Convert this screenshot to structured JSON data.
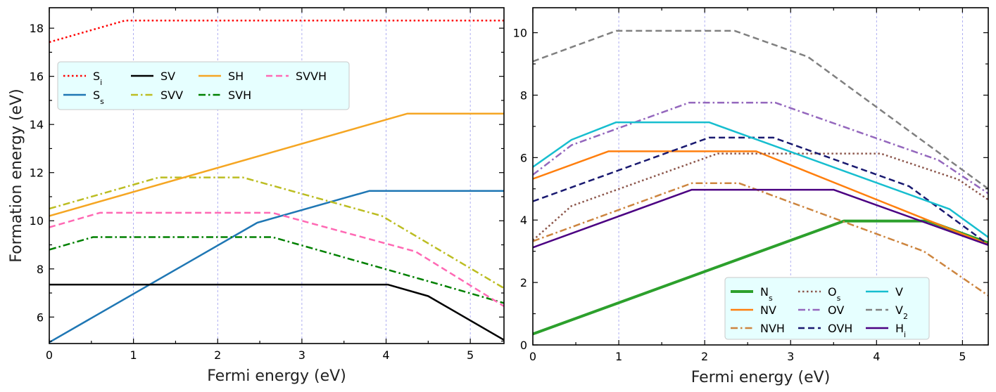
{
  "chart_data": [
    {
      "type": "line",
      "title": "",
      "xlabel": "Fermi energy (eV)",
      "ylabel": "Formation energy (eV)",
      "xlim": [
        0,
        5.4
      ],
      "ylim": [
        4.9,
        18.85
      ],
      "xticks": [
        0,
        1,
        2,
        3,
        4,
        5
      ],
      "yticks": [
        6,
        8,
        10,
        12,
        14,
        16,
        18
      ],
      "grid": "vertical dashed at x ticks",
      "legend_position": "upper-left",
      "legend_columns": 4,
      "series": [
        {
          "name": "S",
          "sub": "i",
          "color": "#ff0000",
          "style": "dotted",
          "width": 2.5,
          "points": [
            [
              0,
              17.42
            ],
            [
              0.9,
              18.32
            ],
            [
              5.4,
              18.32
            ]
          ]
        },
        {
          "name": "S",
          "sub": "s",
          "color": "#1f77b4",
          "style": "solid",
          "width": 2.5,
          "points": [
            [
              0,
              4.95
            ],
            [
              2.47,
              9.92
            ],
            [
              3.8,
              11.24
            ],
            [
              5.4,
              11.24
            ]
          ]
        },
        {
          "name": "SV",
          "color": "#000000",
          "style": "solid",
          "width": 2.5,
          "points": [
            [
              0,
              7.35
            ],
            [
              4.02,
              7.35
            ],
            [
              4.5,
              6.87
            ],
            [
              5.4,
              5.05
            ]
          ]
        },
        {
          "name": "SVV",
          "color": "#bcbd22",
          "style": "dashdot",
          "width": 2.5,
          "points": [
            [
              0,
              10.5
            ],
            [
              1.3,
              11.8
            ],
            [
              2.3,
              11.8
            ],
            [
              3.95,
              10.2
            ],
            [
              5.4,
              7.2
            ]
          ]
        },
        {
          "name": "SH",
          "color": "#f5a623",
          "style": "solid",
          "width": 2.5,
          "points": [
            [
              0,
              10.2
            ],
            [
              4.25,
              14.45
            ],
            [
              5.4,
              14.45
            ]
          ]
        },
        {
          "name": "SVH",
          "color": "#008000",
          "style": "dashdot",
          "width": 2.5,
          "points": [
            [
              0,
              8.8
            ],
            [
              0.52,
              9.32
            ],
            [
              2.65,
              9.32
            ],
            [
              4.65,
              7.34
            ],
            [
              5.4,
              6.58
            ]
          ]
        },
        {
          "name": "SVVH",
          "color": "#ff69b4",
          "style": "dashed",
          "width": 2.5,
          "points": [
            [
              0,
              9.73
            ],
            [
              0.6,
              10.33
            ],
            [
              2.65,
              10.33
            ],
            [
              4.35,
              8.72
            ],
            [
              5.4,
              6.45
            ]
          ]
        }
      ]
    },
    {
      "type": "line",
      "title": "",
      "xlabel": "Fermi energy (eV)",
      "ylabel": "",
      "xlim": [
        0,
        5.3
      ],
      "ylim": [
        0,
        10.8
      ],
      "xticks": [
        0,
        1,
        2,
        3,
        4,
        5
      ],
      "yticks": [
        0,
        2,
        4,
        6,
        8,
        10
      ],
      "grid": "vertical dashed at x ticks",
      "legend_position": "lower-right",
      "legend_columns": 3,
      "series": [
        {
          "name": "N",
          "sub": "s",
          "color": "#2ca02c",
          "style": "solid",
          "width": 4,
          "points": [
            [
              0,
              0.35
            ],
            [
              3.62,
              3.97
            ],
            [
              4.6,
              3.97
            ],
            [
              5.3,
              3.27
            ]
          ]
        },
        {
          "name": "NV",
          "color": "#ff7f0e",
          "style": "solid",
          "width": 2.5,
          "points": [
            [
              0,
              5.32
            ],
            [
              0.88,
              6.2
            ],
            [
              2.6,
              6.2
            ],
            [
              5.3,
              3.22
            ]
          ]
        },
        {
          "name": "NVH",
          "color": "#cd853f",
          "style": "dashdot",
          "width": 2.5,
          "points": [
            [
              0,
              3.32
            ],
            [
              1.85,
              5.18
            ],
            [
              2.4,
              5.18
            ],
            [
              4.55,
              3.0
            ],
            [
              5.3,
              1.58
            ]
          ]
        },
        {
          "name": "O",
          "sub": "s",
          "color": "#8c564b",
          "style": "dotted",
          "width": 2.5,
          "points": [
            [
              0,
              3.35
            ],
            [
              0.45,
              4.45
            ],
            [
              2.15,
              6.13
            ],
            [
              4.05,
              6.13
            ],
            [
              4.95,
              5.3
            ],
            [
              5.3,
              4.65
            ]
          ]
        },
        {
          "name": "OV",
          "color": "#9467bd",
          "style": "dashdot",
          "width": 2.5,
          "points": [
            [
              0,
              5.45
            ],
            [
              0.45,
              6.4
            ],
            [
              1.82,
              7.76
            ],
            [
              2.82,
              7.76
            ],
            [
              4.72,
              5.92
            ],
            [
              5.3,
              4.85
            ]
          ]
        },
        {
          "name": "OVH",
          "color": "#191970",
          "style": "dashed",
          "width": 2.5,
          "points": [
            [
              0,
              4.6
            ],
            [
              2.05,
              6.64
            ],
            [
              2.8,
              6.64
            ],
            [
              4.38,
              5.08
            ],
            [
              5.3,
              3.22
            ]
          ]
        },
        {
          "name": "V",
          "color": "#17becf",
          "style": "solid",
          "width": 2.5,
          "points": [
            [
              0,
              5.7
            ],
            [
              0.45,
              6.57
            ],
            [
              0.97,
              7.13
            ],
            [
              2.05,
              7.13
            ],
            [
              4.85,
              4.35
            ],
            [
              5.3,
              3.45
            ]
          ]
        },
        {
          "name": "V",
          "sub": "2",
          "color": "#808080",
          "style": "dashed",
          "width": 2.5,
          "points": [
            [
              0,
              9.08
            ],
            [
              0.97,
              10.06
            ],
            [
              2.35,
              10.06
            ],
            [
              3.2,
              9.23
            ],
            [
              5.3,
              5.0
            ]
          ]
        },
        {
          "name": "H",
          "sub": "i",
          "color": "#4b0082",
          "style": "solid",
          "width": 2.5,
          "points": [
            [
              0,
              3.12
            ],
            [
              1.85,
              4.97
            ],
            [
              3.5,
              4.97
            ],
            [
              5.3,
              3.2
            ]
          ]
        }
      ]
    }
  ]
}
